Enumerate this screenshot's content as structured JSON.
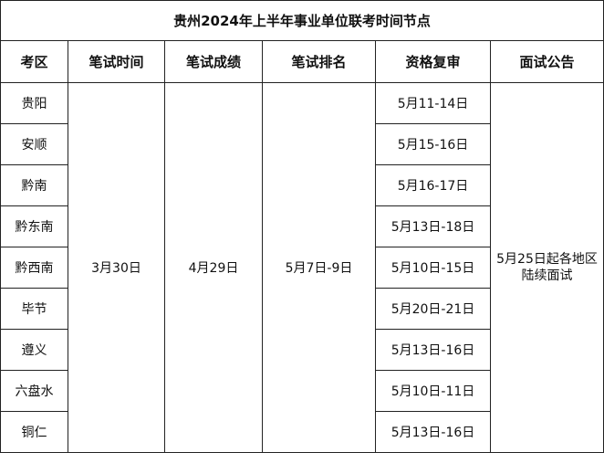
{
  "title": "贵州2024年上半年事业单位联考时间节点",
  "headers": [
    "考区",
    "笔试时间",
    "笔试成绩",
    "笔试排名",
    "资格复审",
    "面试公告"
  ],
  "written_exam_date": "3月30日",
  "score_date": "4月29日",
  "ranking_date": "5月7日-9日",
  "interview_notice": [
    "5月25日起各地区",
    "陆续面试"
  ],
  "rows": [
    {
      "region": "贵阳",
      "review": "5月11-14日"
    },
    {
      "region": "安顺",
      "review": "5月15-16日"
    },
    {
      "region": "黔南",
      "review": "5月16-17日"
    },
    {
      "region": "黔东南",
      "review": "5月13日-18日"
    },
    {
      "region": "黔西南",
      "review": "5月10日-15日"
    },
    {
      "region": "毕节",
      "review": "5月20日-21日"
    },
    {
      "region": "遵义",
      "review": "5月13日-16日"
    },
    {
      "region": "六盘水",
      "review": "5月10日-11日"
    },
    {
      "region": "铜仁",
      "review": "5月13日-16日"
    }
  ]
}
